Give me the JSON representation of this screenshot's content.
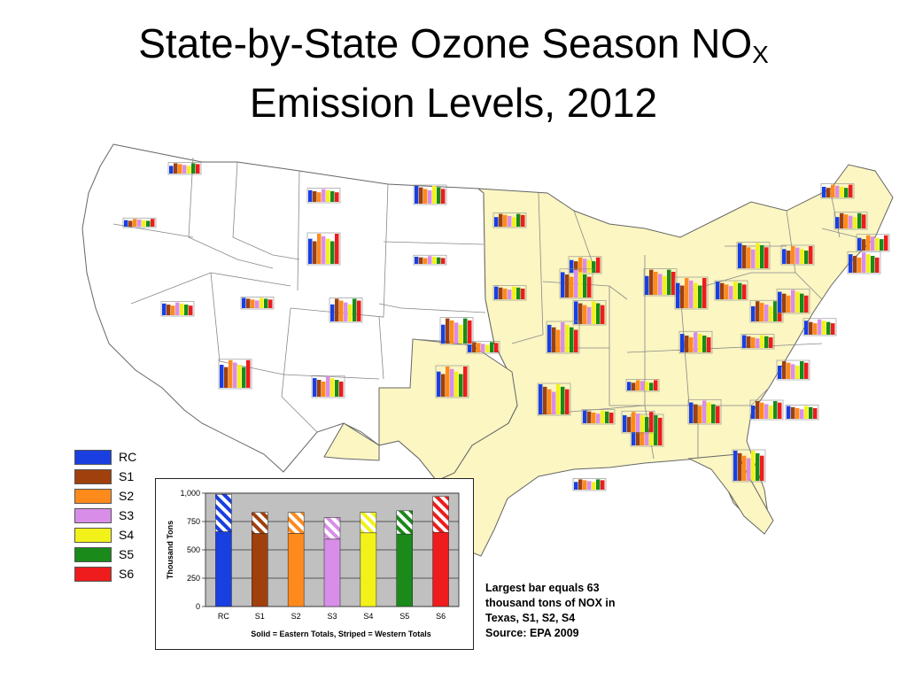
{
  "title": {
    "line1_main": "State-by-State Ozone Season NO",
    "line1_sub": "X",
    "line2": "Emission Levels, 2012"
  },
  "colors": {
    "RC": "#1a3fe0",
    "S1": "#a0400c",
    "S2": "#ff8a1c",
    "S3": "#d88ee8",
    "S4": "#f2f21a",
    "S5": "#1a8a1a",
    "S6": "#ee1c1c",
    "eastern_fill": "#fbf6c2",
    "western_fill": "#ffffff",
    "chart_plot_bg": "#c0c0c0"
  },
  "legend": {
    "items": [
      {
        "label": "RC",
        "color": "#1a3fe0"
      },
      {
        "label": "S1",
        "color": "#a0400c"
      },
      {
        "label": "S2",
        "color": "#ff8a1c"
      },
      {
        "label": "S3",
        "color": "#d88ee8"
      },
      {
        "label": "S4",
        "color": "#f2f21a"
      },
      {
        "label": "S5",
        "color": "#1a8a1a"
      },
      {
        "label": "S6",
        "color": "#ee1c1c"
      }
    ]
  },
  "chart_data": {
    "type": "bar",
    "stacked": true,
    "categories": [
      "RC",
      "S1",
      "S2",
      "S3",
      "S4",
      "S5",
      "S6"
    ],
    "series": [
      {
        "name": "Solid = Eastern Totals",
        "values": [
          660,
          645,
          645,
          595,
          650,
          640,
          655
        ]
      },
      {
        "name": "Striped = Western Totals",
        "values": [
          330,
          185,
          185,
          190,
          180,
          205,
          315
        ]
      }
    ],
    "xlabel": "Solid = Eastern Totals, Striped = Western Totals",
    "ylabel": "Thousand Tons",
    "ylim": [
      0,
      1000
    ],
    "yticks": [
      0,
      250,
      500,
      750,
      1000
    ],
    "ytick_labels": [
      "0",
      "250",
      "500",
      "750",
      "1,000"
    ],
    "grid": true,
    "legend": "none"
  },
  "note": {
    "lines": [
      "Largest bar equals 63",
      "thousand tons of NOX in",
      "Texas, S1, S2, S4",
      "Source: EPA 2009"
    ]
  }
}
